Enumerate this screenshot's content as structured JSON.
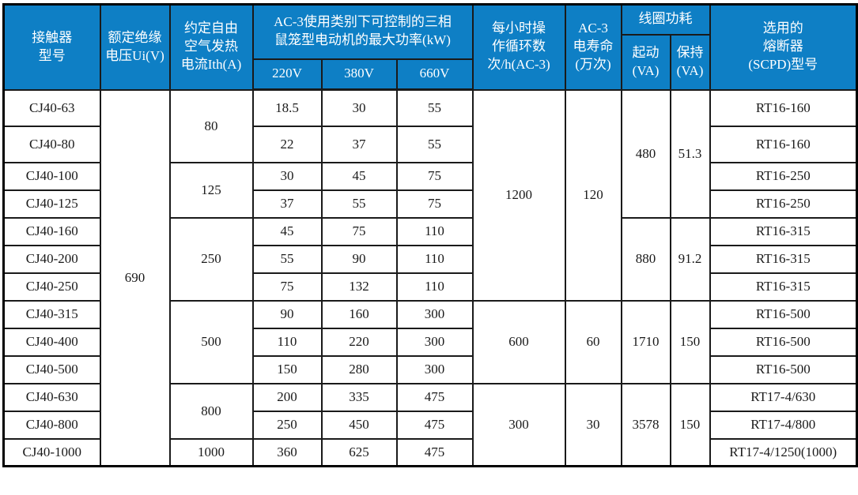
{
  "colors": {
    "header_bg": "#0e7fc5",
    "header_text": "#ffffff",
    "border": "#1a1a1a",
    "body_text": "#1a1a1a",
    "page_bg": "#ffffff"
  },
  "table": {
    "header": {
      "model": "接触器\n型号",
      "insulation_voltage": "额定绝缘\n电压Ui(V)",
      "thermal_current": "约定自由\n空气发热\n电流Ith(A)",
      "power_group": "AC-3使用类别下可控制的三相\n鼠笼型电动机的最大功率(kW)",
      "v220": "220V",
      "v380": "380V",
      "v660": "660V",
      "ops_cycles": "每小时操\n作循环数\n次/h(AC-3)",
      "electrical_life": "AC-3\n电寿命\n(万次)",
      "coil_power_group": "线圈功耗",
      "coil_start": "起动\n(VA)",
      "coil_hold": "保持\n(VA)",
      "fuse": "选用的\n熔断器\n(SCPD)型号"
    },
    "body": {
      "rows": [
        [
          "CJ40-63",
          {
            "t": "690",
            "rs": 13
          },
          {
            "t": "80",
            "rs": 2,
            "ge": true
          },
          "18.5",
          "30",
          "55",
          {
            "t": "1200",
            "rs": 7,
            "ge": true
          },
          {
            "t": "120",
            "rs": 7,
            "ge": true
          },
          {
            "t": "480",
            "rs": 4,
            "ge": true
          },
          {
            "t": "51.3",
            "rs": 4,
            "ge": true
          },
          "RT16-160"
        ],
        [
          "CJ40-80",
          {
            "t": "22",
            "ge": true
          },
          {
            "t": "37",
            "ge": true
          },
          {
            "t": "55",
            "ge": true
          },
          "RT16-160"
        ],
        [
          "CJ40-100",
          {
            "t": "125",
            "rs": 2,
            "ge": true
          },
          "30",
          "45",
          "75",
          "RT16-250"
        ],
        [
          "CJ40-125",
          {
            "t": "37",
            "ge": true
          },
          {
            "t": "55",
            "ge": true
          },
          {
            "t": "75",
            "ge": true
          },
          "RT16-250"
        ],
        [
          "CJ40-160",
          {
            "t": "250",
            "rs": 3,
            "ge": true
          },
          "45",
          "75",
          "110",
          {
            "t": "880",
            "rs": 3,
            "ge": true
          },
          {
            "t": "91.2",
            "rs": 3,
            "ge": true
          },
          "RT16-315"
        ],
        [
          "CJ40-200",
          "55",
          "90",
          "110",
          "RT16-315"
        ],
        [
          "CJ40-250",
          {
            "t": "75",
            "ge": true
          },
          {
            "t": "132",
            "ge": true
          },
          {
            "t": "110",
            "ge": true
          },
          {
            "t": "RT16-315",
            "ge": true
          }
        ],
        [
          "CJ40-315",
          {
            "t": "500",
            "rs": 3,
            "ge": true
          },
          "90",
          "160",
          "300",
          {
            "t": "600",
            "rs": 3,
            "ge": true
          },
          {
            "t": "60",
            "rs": 3,
            "ge": true
          },
          {
            "t": "1710",
            "rs": 3,
            "ge": true
          },
          {
            "t": "150",
            "rs": 3,
            "ge": true
          },
          "RT16-500"
        ],
        [
          "CJ40-400",
          "110",
          "220",
          "300",
          "RT16-500"
        ],
        [
          "CJ40-500",
          {
            "t": "150",
            "ge": true
          },
          {
            "t": "280",
            "ge": true
          },
          {
            "t": "300",
            "ge": true
          },
          {
            "t": "RT16-500",
            "ge": true
          }
        ],
        [
          "CJ40-630",
          {
            "t": "800",
            "rs": 2,
            "ge": true
          },
          "200",
          "335",
          "475",
          {
            "t": "300",
            "rs": 3
          },
          {
            "t": "30",
            "rs": 3
          },
          {
            "t": "3578",
            "rs": 3
          },
          {
            "t": "150",
            "rs": 3
          },
          "RT17-4/630"
        ],
        [
          "CJ40-800",
          {
            "t": "250",
            "ge": true
          },
          {
            "t": "450",
            "ge": true
          },
          {
            "t": "475",
            "ge": true
          },
          "RT17-4/800"
        ],
        [
          "CJ40-1000",
          "1000",
          "360",
          "625",
          "475",
          "RT17-4/1250(1000)"
        ]
      ]
    }
  }
}
